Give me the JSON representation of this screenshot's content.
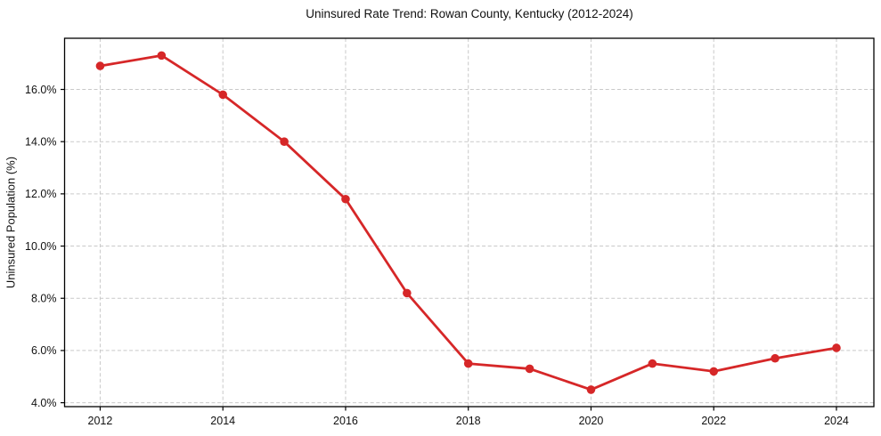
{
  "chart_data": {
    "type": "line",
    "title": "Uninsured Rate Trend: Rowan County, Kentucky (2012-2024)",
    "xlabel": "",
    "ylabel": "Uninsured Population (%)",
    "x": [
      2012,
      2013,
      2014,
      2015,
      2016,
      2017,
      2018,
      2019,
      2020,
      2021,
      2022,
      2023,
      2024
    ],
    "values": [
      16.9,
      17.3,
      15.8,
      14.0,
      11.8,
      8.2,
      5.5,
      5.3,
      4.5,
      5.5,
      5.2,
      5.7,
      6.1
    ],
    "x_ticks": [
      2012,
      2014,
      2016,
      2018,
      2020,
      2022,
      2024
    ],
    "x_tick_labels": [
      "2012",
      "2014",
      "2016",
      "2018",
      "2020",
      "2022",
      "2024"
    ],
    "y_ticks": [
      4,
      6,
      8,
      10,
      12,
      14,
      16
    ],
    "y_tick_labels": [
      "4.0%",
      "6.0%",
      "8.0%",
      "10.0%",
      "12.0%",
      "14.0%",
      "16.0%"
    ],
    "xlim": [
      2011.42,
      2024.61
    ],
    "ylim": [
      3.85,
      17.96
    ],
    "grid": true,
    "grid_style": "dashed",
    "legend": false,
    "colors": {
      "line": "#d62728",
      "grid": "#c9c9c9",
      "spine": "#000000",
      "text": "#111111",
      "background": "#ffffff"
    }
  }
}
